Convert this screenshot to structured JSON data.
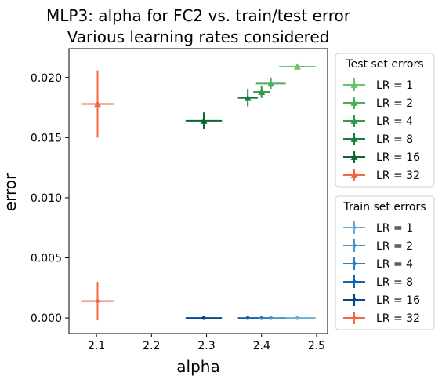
{
  "chart_data": {
    "type": "scatter",
    "title": "MLP3: alpha for FC2 vs. train/test error",
    "subtitle": "Various learning rates considered",
    "xlabel": "alpha",
    "ylabel": "error",
    "xlim": [
      2.05,
      2.52
    ],
    "ylim": [
      -0.0013,
      0.0224
    ],
    "xticks": [
      2.1,
      2.2,
      2.3,
      2.4,
      2.5
    ],
    "xtick_labels": [
      "2.1",
      "2.2",
      "2.3",
      "2.4",
      "2.5"
    ],
    "yticks": [
      0.0,
      0.005,
      0.01,
      0.015,
      0.02
    ],
    "ytick_labels": [
      "0.000",
      "0.005",
      "0.010",
      "0.015",
      "0.020"
    ],
    "grid": false,
    "legends": [
      {
        "title": "Test set errors",
        "placement": "outside-right-top",
        "entries": [
          {
            "label": "LR = 1",
            "color": "#6cc170",
            "marker": "triangle"
          },
          {
            "label": "LR = 2",
            "color": "#4caf5a",
            "marker": "triangle"
          },
          {
            "label": "LR = 4",
            "color": "#2e9a48",
            "marker": "triangle"
          },
          {
            "label": "LR = 8",
            "color": "#1a7f3a",
            "marker": "triangle"
          },
          {
            "label": "LR = 16",
            "color": "#0b6630",
            "marker": "triangle"
          },
          {
            "label": "LR = 32",
            "color": "#f26746",
            "marker": "triangle"
          }
        ]
      },
      {
        "title": "Train set errors",
        "placement": "outside-right-bottom",
        "entries": [
          {
            "label": "LR = 1",
            "color": "#6aaed6",
            "marker": "circle"
          },
          {
            "label": "LR = 2",
            "color": "#4a98c9",
            "marker": "circle"
          },
          {
            "label": "LR = 4",
            "color": "#2e7ebc",
            "marker": "circle"
          },
          {
            "label": "LR = 8",
            "color": "#1764ab",
            "marker": "circle"
          },
          {
            "label": "LR = 16",
            "color": "#08468b",
            "marker": "circle"
          },
          {
            "label": "LR = 32",
            "color": "#f26746",
            "marker": "circle"
          }
        ]
      }
    ],
    "series": [
      {
        "group": "test",
        "lr": 1,
        "color": "#6cc170",
        "marker": "triangle",
        "x": 2.465,
        "y": 0.0209,
        "xerr": 0.033,
        "yerr": 0.0002
      },
      {
        "group": "test",
        "lr": 2,
        "color": "#4caf5a",
        "marker": "triangle",
        "x": 2.417,
        "y": 0.0195,
        "xerr": 0.027,
        "yerr": 0.0005
      },
      {
        "group": "test",
        "lr": 4,
        "color": "#2e9a48",
        "marker": "triangle",
        "x": 2.4,
        "y": 0.0188,
        "xerr": 0.015,
        "yerr": 0.0005
      },
      {
        "group": "test",
        "lr": 8,
        "color": "#1a7f3a",
        "marker": "triangle",
        "x": 2.375,
        "y": 0.0183,
        "xerr": 0.018,
        "yerr": 0.0007
      },
      {
        "group": "test",
        "lr": 16,
        "color": "#0b6630",
        "marker": "triangle",
        "x": 2.295,
        "y": 0.0164,
        "xerr": 0.033,
        "yerr": 0.0007
      },
      {
        "group": "test",
        "lr": 32,
        "color": "#f26746",
        "marker": "triangle",
        "x": 2.102,
        "y": 0.0178,
        "xerr": 0.03,
        "yerr": 0.0028
      },
      {
        "group": "train",
        "lr": 1,
        "color": "#6aaed6",
        "marker": "circle",
        "x": 2.465,
        "y": 0.0,
        "xerr": 0.033,
        "yerr": 0.0
      },
      {
        "group": "train",
        "lr": 2,
        "color": "#4a98c9",
        "marker": "circle",
        "x": 2.417,
        "y": 0.0,
        "xerr": 0.027,
        "yerr": 0.0
      },
      {
        "group": "train",
        "lr": 4,
        "color": "#2e7ebc",
        "marker": "circle",
        "x": 2.4,
        "y": 0.0,
        "xerr": 0.015,
        "yerr": 0.0
      },
      {
        "group": "train",
        "lr": 8,
        "color": "#1764ab",
        "marker": "circle",
        "x": 2.375,
        "y": 0.0,
        "xerr": 0.018,
        "yerr": 0.0
      },
      {
        "group": "train",
        "lr": 16,
        "color": "#08468b",
        "marker": "circle",
        "x": 2.295,
        "y": 0.0,
        "xerr": 0.033,
        "yerr": 0.0
      },
      {
        "group": "train",
        "lr": 32,
        "color": "#f26746",
        "marker": "circle",
        "x": 2.102,
        "y": 0.0014,
        "xerr": 0.03,
        "yerr": 0.0016
      }
    ]
  }
}
